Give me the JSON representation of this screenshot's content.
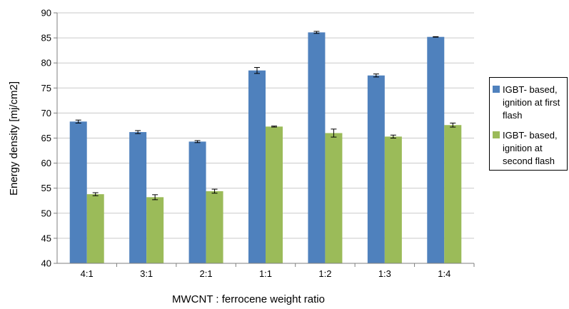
{
  "chart_data": {
    "type": "bar",
    "xlabel": "MWCNT : ferrocene weight ratio",
    "ylabel": "Energy density [mj/cm2]",
    "categories": [
      "4:1",
      "3:1",
      "2:1",
      "1:1",
      "1:2",
      "1:3",
      "1:4"
    ],
    "ylim": [
      40,
      90
    ],
    "yticks": [
      40,
      45,
      50,
      55,
      60,
      65,
      70,
      75,
      80,
      85,
      90
    ],
    "grid": true,
    "legend_position": "right",
    "error_bars": true,
    "series": [
      {
        "name": "IGBT- based, ignition at first flash",
        "color": "#4f81bd",
        "values": [
          68.3,
          66.2,
          64.3,
          78.5,
          86.1,
          77.5,
          85.2
        ],
        "errors": [
          0.3,
          0.3,
          0.2,
          0.6,
          0.2,
          0.3,
          0.05
        ]
      },
      {
        "name": "IGBT- based, ignition at second flash",
        "color": "#9bbb59",
        "values": [
          53.8,
          53.2,
          54.4,
          67.3,
          66.0,
          65.3,
          67.6
        ],
        "errors": [
          0.3,
          0.5,
          0.4,
          0.1,
          0.8,
          0.3,
          0.4
        ]
      }
    ]
  }
}
